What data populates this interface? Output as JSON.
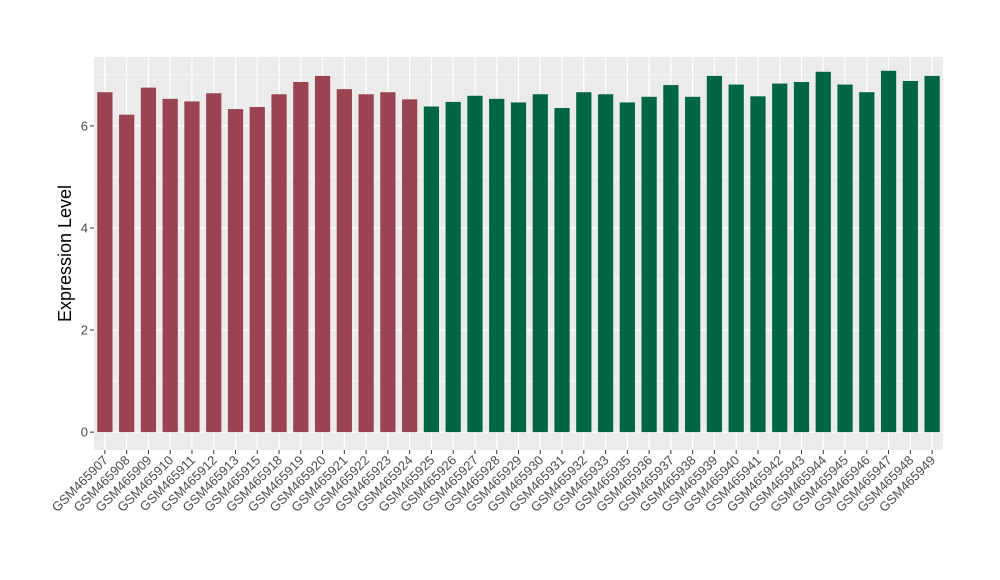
{
  "chart_data": {
    "type": "bar",
    "title": "",
    "xlabel": "",
    "ylabel": "Expression Level",
    "ylim": [
      -0.35,
      7.35
    ],
    "yticks": [
      0,
      2,
      4,
      6
    ],
    "grid": true,
    "panel_background": "#ebebeb",
    "colors": {
      "group_a": "#9a4452",
      "group_b": "#006742"
    },
    "categories": [
      "GSM465907",
      "GSM465908",
      "GSM465909",
      "GSM465910",
      "GSM465911",
      "GSM465912",
      "GSM465913",
      "GSM465915",
      "GSM465918",
      "GSM465919",
      "GSM465920",
      "GSM465921",
      "GSM465922",
      "GSM465923",
      "GSM465924",
      "GSM465925",
      "GSM465926",
      "GSM465927",
      "GSM465928",
      "GSM465929",
      "GSM465930",
      "GSM465931",
      "GSM465932",
      "GSM465933",
      "GSM465935",
      "GSM465936",
      "GSM465937",
      "GSM465938",
      "GSM465939",
      "GSM465940",
      "GSM465941",
      "GSM465942",
      "GSM465943",
      "GSM465944",
      "GSM465945",
      "GSM465946",
      "GSM465947",
      "GSM465948",
      "GSM465949"
    ],
    "values": [
      6.66,
      6.22,
      6.75,
      6.53,
      6.48,
      6.64,
      6.33,
      6.37,
      6.62,
      6.86,
      6.98,
      6.72,
      6.62,
      6.66,
      6.52,
      6.38,
      6.47,
      6.59,
      6.53,
      6.46,
      6.62,
      6.35,
      6.66,
      6.62,
      6.46,
      6.57,
      6.8,
      6.57,
      6.98,
      6.81,
      6.58,
      6.83,
      6.86,
      7.06,
      6.81,
      6.66,
      7.08,
      6.88,
      6.98
    ],
    "groups": [
      "a",
      "a",
      "a",
      "a",
      "a",
      "a",
      "a",
      "a",
      "a",
      "a",
      "a",
      "a",
      "a",
      "a",
      "a",
      "b",
      "b",
      "b",
      "b",
      "b",
      "b",
      "b",
      "b",
      "b",
      "b",
      "b",
      "b",
      "b",
      "b",
      "b",
      "b",
      "b",
      "b",
      "b",
      "b",
      "b",
      "b",
      "b",
      "b"
    ]
  }
}
